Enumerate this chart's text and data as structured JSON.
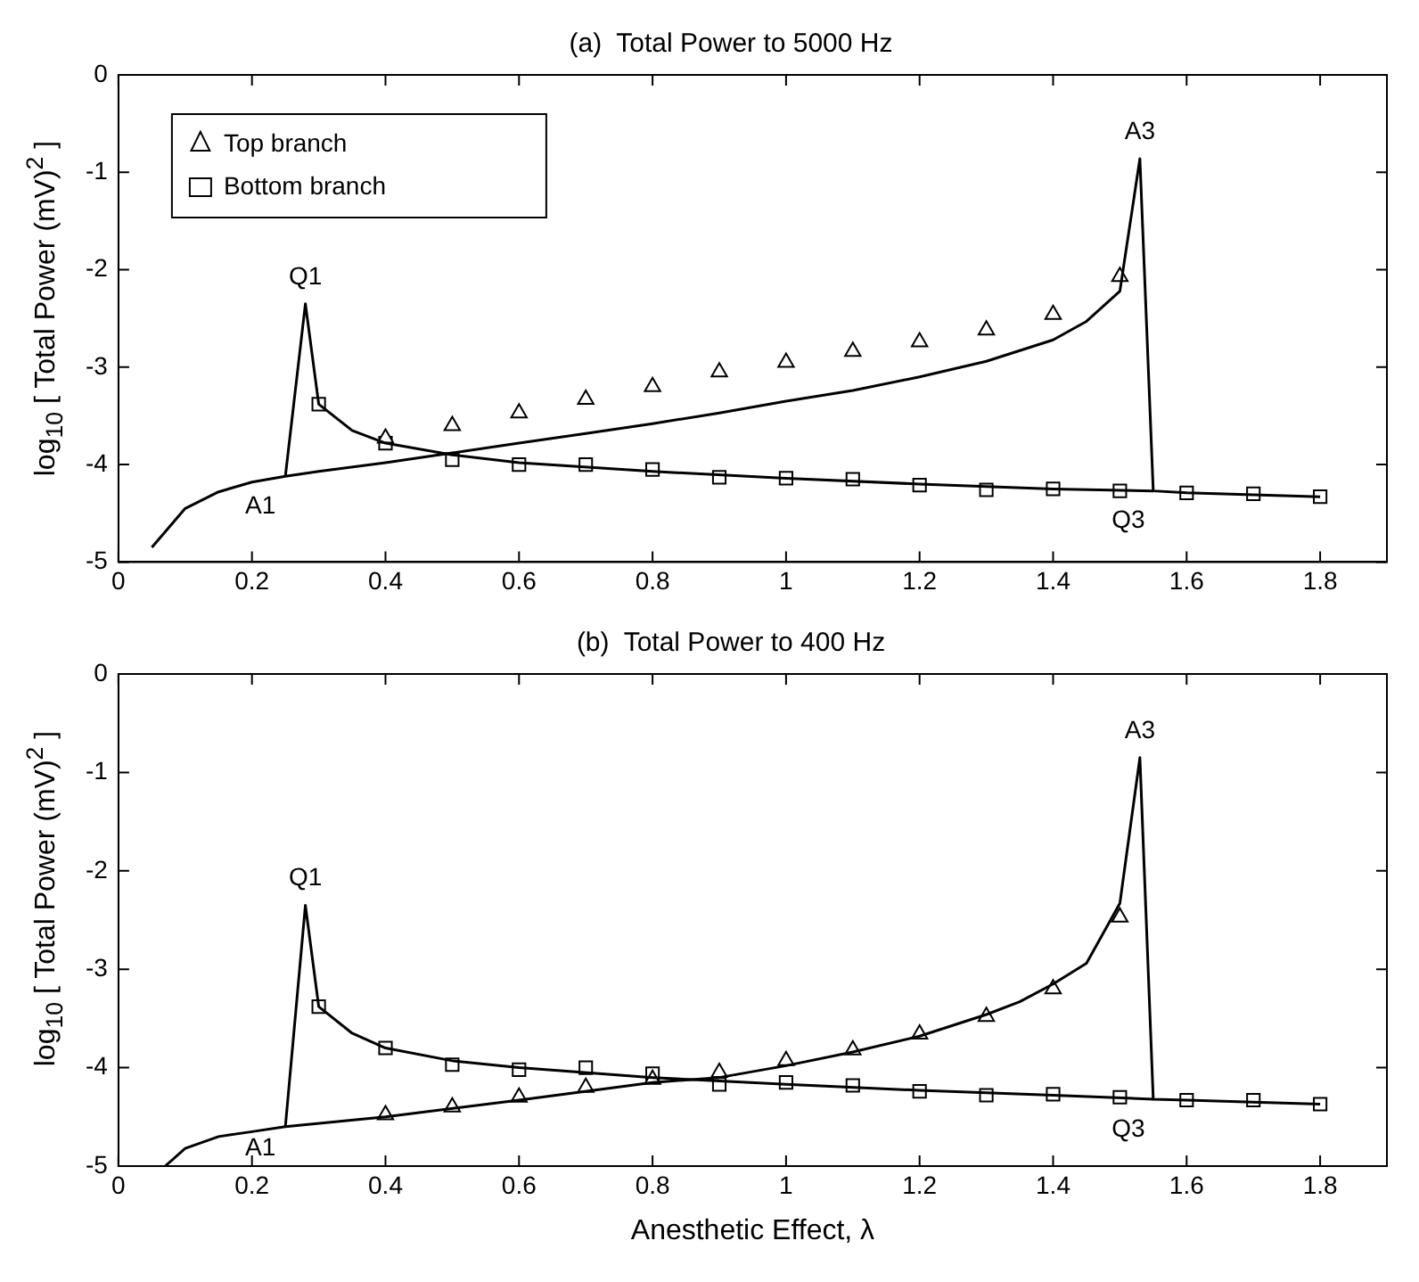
{
  "chart_data": [
    {
      "type": "line",
      "title": "(a)  Total Power to 5000 Hz",
      "ylabel": "log$_{10}$ [ Total Power (mV)$^{2}$ ]",
      "xlim": [
        0,
        1.9
      ],
      "ylim": [
        -5,
        0
      ],
      "xticks": [
        0,
        0.2,
        0.4,
        0.6,
        0.8,
        1,
        1.2,
        1.4,
        1.6,
        1.8
      ],
      "yticks": [
        -5,
        -4,
        -3,
        -2,
        -1,
        0
      ],
      "grid": false,
      "legend": "top left",
      "series": [
        {
          "color": "#000000",
          "marker": "none",
          "x": [
            0.05,
            0.1,
            0.15,
            0.2,
            0.25,
            0.3,
            0.4,
            0.5,
            0.6,
            0.7,
            0.8,
            0.9,
            1.0,
            1.1,
            1.2,
            1.3,
            1.4,
            1.45,
            1.5,
            1.53,
            1.55,
            1.6,
            1.7,
            1.8
          ],
          "values": [
            -4.85,
            -4.45,
            -4.28,
            -4.18,
            -4.12,
            -4.07,
            -3.98,
            -3.88,
            -3.78,
            -3.68,
            -3.58,
            -3.47,
            -3.35,
            -3.24,
            -3.1,
            -2.94,
            -2.72,
            -2.53,
            -2.22,
            -0.86,
            -4.27,
            -4.29,
            -4.31,
            -4.33
          ]
        },
        {
          "color": "#000000",
          "marker": "none",
          "x": [
            0.25,
            0.28,
            0.3,
            0.35,
            0.4,
            0.5,
            0.6,
            0.8,
            1.0,
            1.2,
            1.4,
            1.55
          ],
          "values": [
            -4.12,
            -2.35,
            -3.38,
            -3.65,
            -3.78,
            -3.9,
            -3.98,
            -4.07,
            -4.14,
            -4.2,
            -4.25,
            -4.27
          ]
        },
        {
          "type": "scatter",
          "name": "Top branch",
          "color": "#000000",
          "marker": "triangle",
          "x": [
            0.4,
            0.5,
            0.6,
            0.7,
            0.8,
            0.9,
            1.0,
            1.1,
            1.2,
            1.3,
            1.4,
            1.5
          ],
          "values": [
            -3.73,
            -3.6,
            -3.47,
            -3.33,
            -3.2,
            -3.05,
            -2.95,
            -2.84,
            -2.74,
            -2.62,
            -2.46,
            -2.07
          ]
        },
        {
          "type": "scatter",
          "name": "Bottom branch",
          "color": "#000000",
          "marker": "square",
          "x": [
            0.3,
            0.4,
            0.5,
            0.6,
            0.7,
            0.8,
            0.9,
            1.0,
            1.1,
            1.2,
            1.3,
            1.4,
            1.5,
            1.6,
            1.7,
            1.8
          ],
          "values": [
            -3.38,
            -3.78,
            -3.95,
            -4.0,
            -4.0,
            -4.05,
            -4.13,
            -4.14,
            -4.15,
            -4.21,
            -4.26,
            -4.25,
            -4.27,
            -4.29,
            -4.3,
            -4.33
          ]
        }
      ],
      "annotations": [
        {
          "text": "Q1",
          "x": 0.28,
          "y": -2.35
        },
        {
          "text": "A1",
          "x": 0.25,
          "y": -4.12
        },
        {
          "text": "A3",
          "x": 1.53,
          "y": -0.86
        },
        {
          "text": "Q3",
          "x": 1.55,
          "y": -4.27
        }
      ]
    },
    {
      "type": "line",
      "title": "(b)  Total Power to 400 Hz",
      "xlabel": "Anesthetic Effect, λ",
      "ylabel": "log$_{10}$ [ Total Power (mV)$^{2}$ ]",
      "xlim": [
        0,
        1.9
      ],
      "ylim": [
        -5,
        0
      ],
      "xticks": [
        0,
        0.2,
        0.4,
        0.6,
        0.8,
        1,
        1.2,
        1.4,
        1.6,
        1.8
      ],
      "yticks": [
        -5,
        -4,
        -3,
        -2,
        -1,
        0
      ],
      "grid": false,
      "series": [
        {
          "color": "#000000",
          "marker": "none",
          "x": [
            0.07,
            0.1,
            0.15,
            0.2,
            0.25,
            0.4,
            0.6,
            0.8,
            0.9,
            1.0,
            1.1,
            1.2,
            1.3,
            1.35,
            1.4,
            1.45,
            1.5,
            1.53,
            1.55,
            1.6,
            1.7,
            1.8
          ],
          "values": [
            -5.0,
            -4.82,
            -4.7,
            -4.65,
            -4.6,
            -4.5,
            -4.33,
            -4.15,
            -4.1,
            -3.98,
            -3.84,
            -3.68,
            -3.46,
            -3.33,
            -3.15,
            -2.94,
            -2.33,
            -0.85,
            -4.32,
            -4.33,
            -4.35,
            -4.37
          ]
        },
        {
          "color": "#000000",
          "marker": "none",
          "x": [
            0.25,
            0.28,
            0.3,
            0.35,
            0.4,
            0.5,
            0.6,
            0.8,
            1.0,
            1.2,
            1.4,
            1.55
          ],
          "values": [
            -4.6,
            -2.35,
            -3.38,
            -3.65,
            -3.8,
            -3.93,
            -4.0,
            -4.1,
            -4.17,
            -4.23,
            -4.28,
            -4.32
          ]
        },
        {
          "type": "scatter",
          "color": "#000000",
          "marker": "triangle",
          "x": [
            0.4,
            0.5,
            0.6,
            0.7,
            0.8,
            0.9,
            1.0,
            1.1,
            1.2,
            1.3,
            1.4,
            1.5
          ],
          "values": [
            -4.48,
            -4.4,
            -4.3,
            -4.2,
            -4.12,
            -4.05,
            -3.93,
            -3.82,
            -3.66,
            -3.48,
            -3.2,
            -2.47
          ]
        },
        {
          "type": "scatter",
          "color": "#000000",
          "marker": "square",
          "x": [
            0.3,
            0.4,
            0.5,
            0.6,
            0.7,
            0.8,
            0.9,
            1.0,
            1.1,
            1.2,
            1.3,
            1.4,
            1.5,
            1.6,
            1.7,
            1.8
          ],
          "values": [
            -3.38,
            -3.8,
            -3.97,
            -4.02,
            -4.0,
            -4.06,
            -4.17,
            -4.15,
            -4.18,
            -4.24,
            -4.28,
            -4.27,
            -4.3,
            -4.33,
            -4.33,
            -4.37
          ]
        }
      ],
      "annotations": [
        {
          "text": "Q1",
          "x": 0.28,
          "y": -2.35
        },
        {
          "text": "A1",
          "x": 0.25,
          "y": -4.6
        },
        {
          "text": "A3",
          "x": 1.53,
          "y": -0.85
        },
        {
          "text": "Q3",
          "x": 1.55,
          "y": -4.32
        }
      ]
    }
  ]
}
